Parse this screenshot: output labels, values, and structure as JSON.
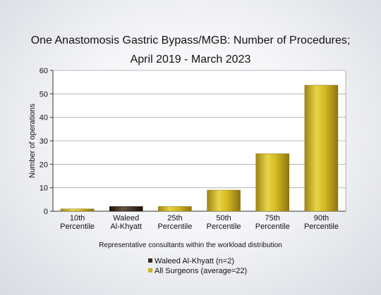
{
  "title_line1": "One Anastomosis Gastric Bypass/MGB: Number of Procedures;",
  "title_line2": "April 2019 - March 2023",
  "chart_data": {
    "type": "bar",
    "title": "One Anastomosis Gastric Bypass/MGB: Number of Procedures; April 2019 - March 2023",
    "categories": [
      [
        "10th",
        "Percentile"
      ],
      [
        "Waleed",
        "Al-Khyatt"
      ],
      [
        "25th",
        "Percentile"
      ],
      [
        "50th",
        "Percentile"
      ],
      [
        "75th",
        "Percentile"
      ],
      [
        "90th",
        "Percentile"
      ]
    ],
    "values": [
      1,
      2,
      2,
      9,
      24.5,
      53.7
    ],
    "highlight_index": 1,
    "ylabel": "Number of operations",
    "xlabel": "Representative consultants within the workload distribution",
    "ylim": [
      0,
      60
    ],
    "yticks": [
      0,
      10,
      20,
      30,
      40,
      50,
      60
    ],
    "grid": true,
    "legend": [
      {
        "label": "Waleed Al-Khyatt (n=2)",
        "color": "#3a2a1e"
      },
      {
        "label": "All Surgeons (average=22)",
        "color": "#cdb21f"
      }
    ],
    "colors": {
      "bar": "#cdb21f",
      "highlight": "#3a2a1e"
    }
  }
}
